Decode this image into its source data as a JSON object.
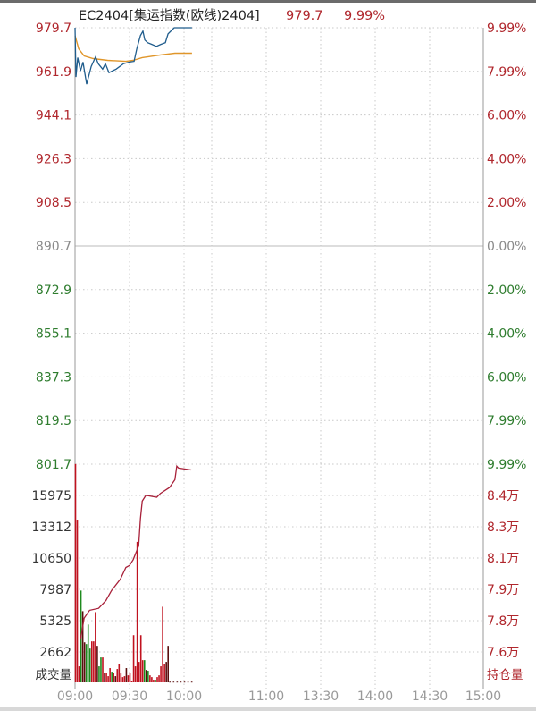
{
  "header": {
    "symbol": "EC2404[集运指数(欧线)2404]",
    "last_price": "979.7",
    "change_pct": "9.99%"
  },
  "colors": {
    "up": "#c0121f",
    "down": "#1e8a1e",
    "flat_bar": "#5a0e0e",
    "price_line": "#1f5c8c",
    "avg_line": "#e0962a",
    "oi_line": "#a8213a",
    "up_label": "#b0272d",
    "down_label": "#2f7d2f",
    "neutral_label": "#8a8a8a",
    "grid": "#c8c8c8"
  },
  "chart_data": [
    {
      "type": "line",
      "title": "EC2404[集运指数(欧线)2404]",
      "x_tick_labels": [
        "09:00",
        "09:30",
        "10:00",
        "11:00",
        "13:30",
        "14:00",
        "14:30",
        "15:00"
      ],
      "y_left_ticks": [
        "979.7",
        "961.9",
        "944.1",
        "926.3",
        "908.5",
        "890.7",
        "872.9",
        "855.1",
        "837.3",
        "819.5",
        "801.7"
      ],
      "y_right_ticks": [
        "9.99%",
        "7.99%",
        "6.00%",
        "4.00%",
        "2.00%",
        "0.00%",
        "2.00%",
        "4.00%",
        "6.00%",
        "7.99%",
        "9.99%"
      ],
      "ylim": [
        801.7,
        979.7
      ],
      "prev_close": 890.7,
      "grid": true,
      "series": [
        {
          "key": "price",
          "points": [
            [
              0,
              979.7
            ],
            [
              0.5,
              959.6
            ],
            [
              1.5,
              967.5
            ],
            [
              3,
              962.1
            ],
            [
              4.4,
              965.7
            ],
            [
              6.4,
              956.7
            ],
            [
              8.9,
              963.9
            ],
            [
              11.3,
              967.8
            ],
            [
              12.8,
              965.0
            ],
            [
              15.2,
              962.8
            ],
            [
              16.7,
              965.0
            ],
            [
              18.7,
              961.4
            ],
            [
              22.6,
              962.8
            ],
            [
              26.6,
              965.0
            ],
            [
              30,
              965.7
            ],
            [
              32.5,
              966.0
            ],
            [
              34,
              971.1
            ],
            [
              36,
              976.5
            ],
            [
              37.4,
              978.3
            ],
            [
              38.4,
              974.7
            ],
            [
              40,
              973.6
            ],
            [
              42.3,
              972.9
            ],
            [
              44.8,
              972.1
            ],
            [
              47.2,
              972.9
            ],
            [
              49.7,
              973.6
            ],
            [
              51.2,
              977.2
            ],
            [
              54.6,
              979.7
            ],
            [
              64.4,
              979.7
            ]
          ]
        },
        {
          "key": "average",
          "points": [
            [
              0,
              976.5
            ],
            [
              2,
              971.1
            ],
            [
              5,
              968.2
            ],
            [
              10,
              967.1
            ],
            [
              18,
              966.4
            ],
            [
              28,
              966.0
            ],
            [
              32,
              966.4
            ],
            [
              37,
              967.5
            ],
            [
              47,
              968.6
            ],
            [
              55,
              969.3
            ],
            [
              64.4,
              969.3
            ]
          ]
        }
      ]
    },
    {
      "type": "bar",
      "ylabel_left": "成交量",
      "ylabel_right": "持仓量",
      "y_left_ticks": [
        "15975",
        "13312",
        "10650",
        "7987",
        "5325",
        "2662"
      ],
      "y_right_ticks": [
        "8.4万",
        "8.3万",
        "8.1万",
        "7.9万",
        "7.8万",
        "7.6万"
      ],
      "ylim": [
        0,
        18637
      ],
      "volume": [
        [
          0,
          18650,
          "up"
        ],
        [
          1,
          13900,
          "up"
        ],
        [
          2,
          1370,
          "up"
        ],
        [
          3,
          7840,
          "down"
        ],
        [
          4,
          6080,
          "flat"
        ],
        [
          5,
          3420,
          "flat"
        ],
        [
          6,
          3270,
          "down"
        ],
        [
          7,
          4940,
          "down"
        ],
        [
          8,
          2890,
          "down"
        ],
        [
          9,
          3500,
          "up"
        ],
        [
          10,
          3500,
          "up"
        ],
        [
          11,
          6000,
          "up"
        ],
        [
          12,
          3120,
          "flat"
        ],
        [
          13,
          1370,
          "down"
        ],
        [
          14,
          2130,
          "down"
        ],
        [
          15,
          2130,
          "up"
        ],
        [
          16,
          840,
          "flat"
        ],
        [
          17,
          840,
          "up"
        ],
        [
          18,
          530,
          "up"
        ],
        [
          19,
          1220,
          "up"
        ],
        [
          20,
          910,
          "down"
        ],
        [
          21,
          840,
          "up"
        ],
        [
          22,
          530,
          "flat"
        ],
        [
          23,
          1140,
          "up"
        ],
        [
          24,
          1600,
          "up"
        ],
        [
          25,
          760,
          "up"
        ],
        [
          26,
          450,
          "up"
        ],
        [
          27,
          530,
          "up"
        ],
        [
          28,
          1220,
          "flat"
        ],
        [
          29,
          600,
          "up"
        ],
        [
          30,
          840,
          "up"
        ],
        [
          31,
          100,
          "up"
        ],
        [
          32,
          4030,
          "up"
        ],
        [
          33,
          1370,
          "up"
        ],
        [
          34,
          12000,
          "up"
        ],
        [
          35,
          1750,
          "up"
        ],
        [
          36,
          4030,
          "up"
        ],
        [
          37,
          1900,
          "up"
        ],
        [
          38,
          1900,
          "down"
        ],
        [
          39,
          1060,
          "flat"
        ],
        [
          40,
          990,
          "down"
        ],
        [
          41,
          600,
          "up"
        ],
        [
          42,
          450,
          "up"
        ],
        [
          43,
          230,
          "up"
        ],
        [
          44,
          230,
          "down"
        ],
        [
          45,
          450,
          "up"
        ],
        [
          46,
          600,
          "up"
        ],
        [
          47,
          1370,
          "up"
        ],
        [
          48,
          6460,
          "up"
        ],
        [
          49,
          1600,
          "up"
        ],
        [
          50,
          1750,
          "flat"
        ],
        [
          51,
          3120,
          "flat"
        ],
        [
          52,
          60,
          "flat"
        ],
        [
          54,
          60,
          "flat"
        ],
        [
          56,
          60,
          "flat"
        ],
        [
          58,
          60,
          "flat"
        ],
        [
          60,
          60,
          "flat"
        ],
        [
          62,
          60,
          "flat"
        ],
        [
          64,
          60,
          "flat"
        ]
      ],
      "open_interest_wan": [
        [
          3,
          7.66
        ],
        [
          5,
          7.77
        ],
        [
          8,
          7.81
        ],
        [
          13,
          7.82
        ],
        [
          17,
          7.86
        ],
        [
          20,
          7.91
        ],
        [
          25,
          7.97
        ],
        [
          28,
          8.03
        ],
        [
          30,
          8.04
        ],
        [
          32,
          8.07
        ],
        [
          35,
          8.14
        ],
        [
          36,
          8.28
        ],
        [
          37,
          8.37
        ],
        [
          39,
          8.4
        ],
        [
          45,
          8.39
        ],
        [
          47,
          8.41
        ],
        [
          52,
          8.44
        ],
        [
          55,
          8.48
        ],
        [
          56,
          8.55
        ],
        [
          57,
          8.54
        ],
        [
          64,
          8.53
        ]
      ],
      "oi_ylim": [
        7.44,
        8.56
      ]
    }
  ]
}
